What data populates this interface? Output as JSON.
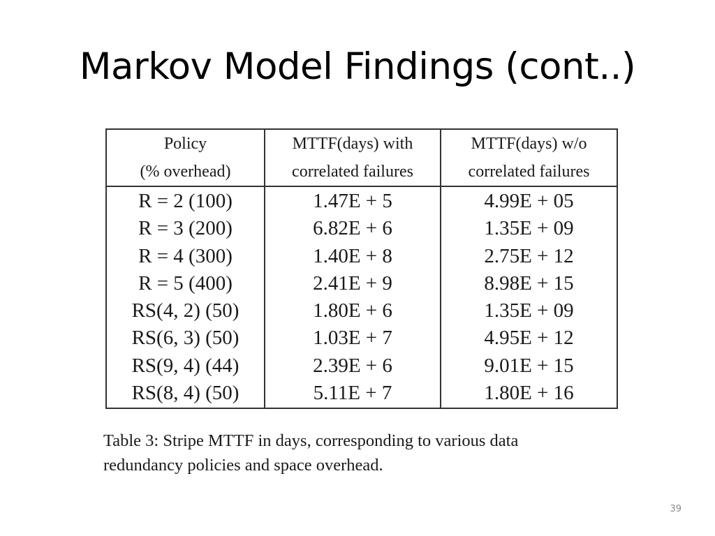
{
  "slide": {
    "title": "Markov Model Findings (cont..)",
    "number": "39"
  },
  "table": {
    "headers": [
      [
        "Policy",
        "(% overhead)"
      ],
      [
        "MTTF(days) with",
        "correlated failures"
      ],
      [
        "MTTF(days) w/o",
        "correlated failures"
      ]
    ],
    "rows": [
      [
        "R = 2 (100)",
        "1.47E + 5",
        "4.99E + 05"
      ],
      [
        "R = 3 (200)",
        "6.82E + 6",
        "1.35E + 09"
      ],
      [
        "R = 4 (300)",
        "1.40E + 8",
        "2.75E + 12"
      ],
      [
        "R = 5 (400)",
        "2.41E + 9",
        "8.98E + 15"
      ],
      [
        "RS(4, 2) (50)",
        "1.80E + 6",
        "1.35E + 09"
      ],
      [
        "RS(6, 3) (50)",
        "1.03E + 7",
        "4.95E + 12"
      ],
      [
        "RS(9, 4) (44)",
        "2.39E + 6",
        "9.01E + 15"
      ],
      [
        "RS(8, 4) (50)",
        "5.11E + 7",
        "1.80E + 16"
      ]
    ],
    "caption_lines": [
      "Table 3:  Stripe MTTF in days, corresponding to various data",
      "redundancy policies and space overhead."
    ]
  }
}
